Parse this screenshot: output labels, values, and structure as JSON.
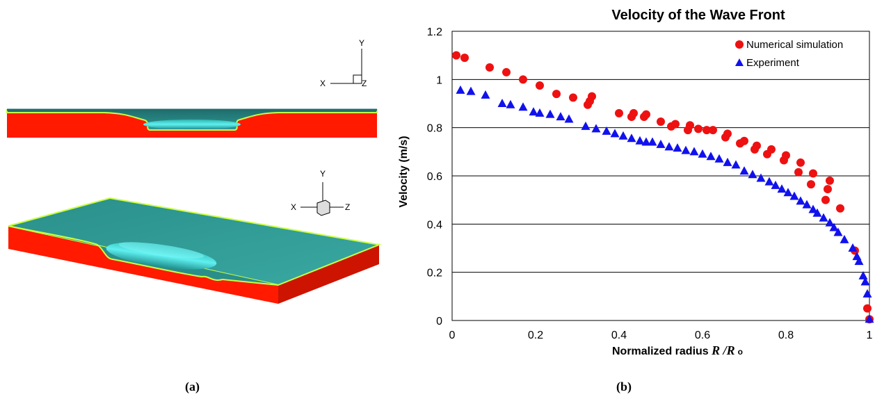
{
  "panels": {
    "a_label": "(a)",
    "b_label": "(b)"
  },
  "simulation_views": {
    "top_view": {
      "axes": [
        "X",
        "Y",
        "Z"
      ]
    },
    "iso_view": {
      "axes": [
        "X",
        "Y",
        "Z"
      ]
    },
    "colors": {
      "base": "#ff1a00",
      "fluid": "#2a8a86",
      "rim": "#c8ff40",
      "crater": "#40e0e0"
    }
  },
  "chart_data": {
    "type": "scatter",
    "title": "Velocity of the Wave Front",
    "xlabel_main": "Normalized radius ",
    "xlabel_var": "R /R",
    "xlabel_sub": "o",
    "ylabel": "Velocity (m/s)",
    "xlim": [
      0,
      1
    ],
    "ylim": [
      0,
      1.2
    ],
    "xticks": [
      "0",
      "0.2",
      "0.4",
      "0.6",
      "0.8",
      "1"
    ],
    "yticks": [
      "0",
      "0.2",
      "0.4",
      "0.6",
      "0.8",
      "1",
      "1.2"
    ],
    "grid": "horizontal",
    "legend_position": "top-right",
    "series": [
      {
        "name": "Numerical simulation",
        "marker": "circle",
        "color": "#ee1111",
        "points": [
          [
            0.01,
            1.1
          ],
          [
            0.03,
            1.09
          ],
          [
            0.09,
            1.05
          ],
          [
            0.13,
            1.03
          ],
          [
            0.17,
            1.0
          ],
          [
            0.21,
            0.975
          ],
          [
            0.25,
            0.94
          ],
          [
            0.29,
            0.925
          ],
          [
            0.325,
            0.895
          ],
          [
            0.33,
            0.91
          ],
          [
            0.335,
            0.93
          ],
          [
            0.4,
            0.86
          ],
          [
            0.43,
            0.845
          ],
          [
            0.435,
            0.86
          ],
          [
            0.46,
            0.845
          ],
          [
            0.465,
            0.855
          ],
          [
            0.5,
            0.825
          ],
          [
            0.525,
            0.805
          ],
          [
            0.535,
            0.815
          ],
          [
            0.565,
            0.79
          ],
          [
            0.57,
            0.81
          ],
          [
            0.59,
            0.795
          ],
          [
            0.61,
            0.79
          ],
          [
            0.625,
            0.79
          ],
          [
            0.655,
            0.76
          ],
          [
            0.66,
            0.775
          ],
          [
            0.69,
            0.735
          ],
          [
            0.7,
            0.745
          ],
          [
            0.725,
            0.71
          ],
          [
            0.73,
            0.725
          ],
          [
            0.755,
            0.69
          ],
          [
            0.765,
            0.71
          ],
          [
            0.795,
            0.665
          ],
          [
            0.8,
            0.685
          ],
          [
            0.83,
            0.615
          ],
          [
            0.835,
            0.655
          ],
          [
            0.86,
            0.565
          ],
          [
            0.865,
            0.61
          ],
          [
            0.895,
            0.5
          ],
          [
            0.9,
            0.545
          ],
          [
            0.905,
            0.58
          ],
          [
            0.93,
            0.465
          ],
          [
            0.965,
            0.29
          ],
          [
            0.995,
            0.05
          ],
          [
            1.0,
            0.005
          ]
        ]
      },
      {
        "name": "Experiment",
        "marker": "triangle",
        "color": "#1111ee",
        "points": [
          [
            0.02,
            0.955
          ],
          [
            0.045,
            0.95
          ],
          [
            0.08,
            0.935
          ],
          [
            0.12,
            0.9
          ],
          [
            0.14,
            0.895
          ],
          [
            0.17,
            0.885
          ],
          [
            0.195,
            0.865
          ],
          [
            0.21,
            0.86
          ],
          [
            0.235,
            0.855
          ],
          [
            0.26,
            0.845
          ],
          [
            0.28,
            0.835
          ],
          [
            0.32,
            0.805
          ],
          [
            0.345,
            0.795
          ],
          [
            0.37,
            0.785
          ],
          [
            0.39,
            0.775
          ],
          [
            0.41,
            0.765
          ],
          [
            0.43,
            0.755
          ],
          [
            0.45,
            0.745
          ],
          [
            0.465,
            0.74
          ],
          [
            0.48,
            0.74
          ],
          [
            0.5,
            0.73
          ],
          [
            0.52,
            0.72
          ],
          [
            0.54,
            0.715
          ],
          [
            0.56,
            0.705
          ],
          [
            0.58,
            0.7
          ],
          [
            0.6,
            0.69
          ],
          [
            0.62,
            0.68
          ],
          [
            0.64,
            0.67
          ],
          [
            0.66,
            0.655
          ],
          [
            0.68,
            0.645
          ],
          [
            0.7,
            0.62
          ],
          [
            0.72,
            0.605
          ],
          [
            0.74,
            0.59
          ],
          [
            0.76,
            0.575
          ],
          [
            0.775,
            0.56
          ],
          [
            0.79,
            0.545
          ],
          [
            0.805,
            0.53
          ],
          [
            0.82,
            0.515
          ],
          [
            0.835,
            0.495
          ],
          [
            0.85,
            0.48
          ],
          [
            0.865,
            0.46
          ],
          [
            0.875,
            0.445
          ],
          [
            0.89,
            0.425
          ],
          [
            0.905,
            0.405
          ],
          [
            0.915,
            0.385
          ],
          [
            0.925,
            0.365
          ],
          [
            0.94,
            0.335
          ],
          [
            0.96,
            0.3
          ],
          [
            0.97,
            0.265
          ],
          [
            0.975,
            0.245
          ],
          [
            0.985,
            0.185
          ],
          [
            0.99,
            0.16
          ],
          [
            0.995,
            0.11
          ],
          [
            1.0,
            0.005
          ]
        ]
      }
    ]
  }
}
